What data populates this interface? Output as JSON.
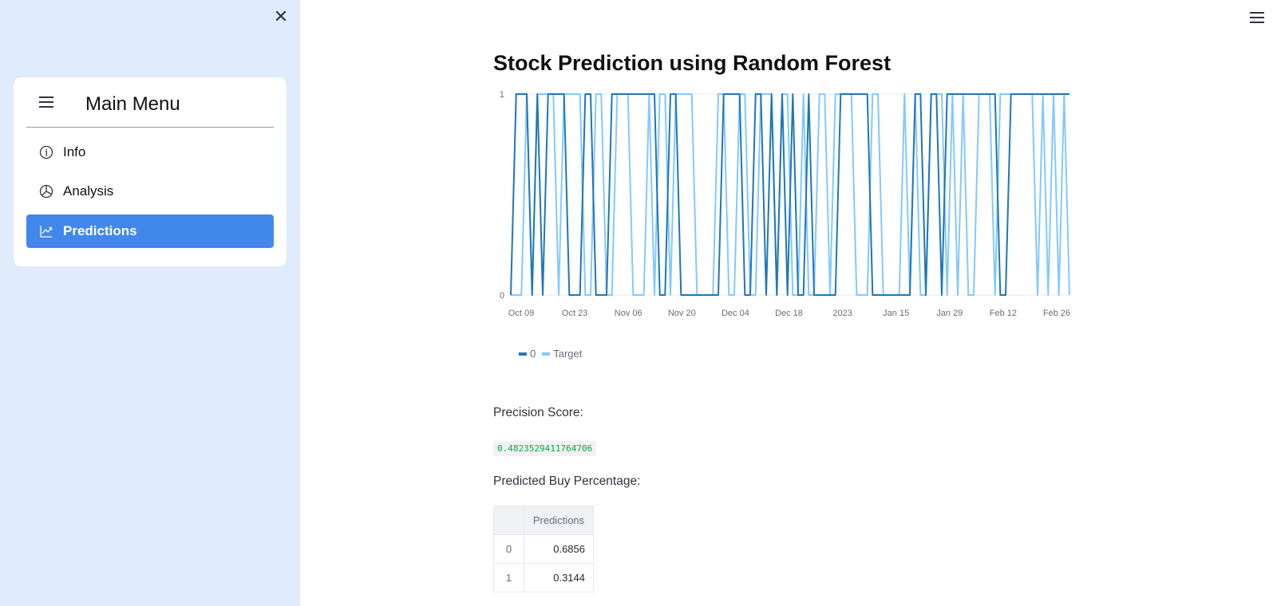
{
  "sidebar": {
    "close_icon": "close-icon",
    "menu": {
      "title": "Main Menu",
      "items": [
        {
          "label": "Info",
          "icon": "info-icon",
          "active": false
        },
        {
          "label": "Analysis",
          "icon": "pie-chart-icon",
          "active": false
        },
        {
          "label": "Predictions",
          "icon": "graph-up-icon",
          "active": true
        }
      ]
    },
    "active_color": "#4287ec",
    "background_color": "#e0ebfc"
  },
  "header": {
    "menu_icon": "hamburger-icon"
  },
  "main": {
    "title": "Stock Prediction using Random Forest",
    "precision_label": "Precision Score:",
    "precision_value": "0.4823529411764706",
    "buy_label": "Predicted Buy Percentage:",
    "table": {
      "columns": [
        "",
        "Predictions"
      ],
      "rows": [
        {
          "index": "0",
          "value": "0.6856"
        },
        {
          "index": "1",
          "value": "0.3144"
        }
      ]
    }
  },
  "chart_data": {
    "type": "line",
    "title": "",
    "xlabel": "",
    "ylabel": "",
    "y_ticks": [
      "0",
      "1"
    ],
    "ylim": [
      0,
      1
    ],
    "x_ticks": [
      "Oct 09",
      "Oct 23",
      "Nov 06",
      "Nov 20",
      "Dec 04",
      "Dec 18",
      "2023",
      "Jan 15",
      "Jan 29",
      "Feb 12",
      "Feb 26"
    ],
    "legend": "bottom-left",
    "series": [
      {
        "name": "0",
        "color": "#1f77b4",
        "values": [
          0,
          1,
          1,
          1,
          0,
          1,
          0,
          1,
          1,
          1,
          1,
          0,
          0,
          0,
          1,
          1,
          0,
          0,
          0,
          1,
          1,
          1,
          1,
          1,
          1,
          1,
          1,
          1,
          0,
          0,
          1,
          1,
          0,
          0,
          0,
          0,
          0,
          0,
          0,
          0,
          1,
          1,
          1,
          1,
          0,
          0,
          1,
          1,
          0,
          1,
          0,
          1,
          0,
          1,
          0,
          0,
          1,
          0,
          0,
          0,
          0,
          0,
          1,
          1,
          1,
          1,
          1,
          1,
          0,
          0,
          0,
          0,
          0,
          0,
          0,
          0,
          1,
          1,
          0,
          1,
          1,
          0,
          1,
          1,
          1,
          1,
          1,
          1,
          1,
          1,
          1,
          1,
          0,
          0,
          1,
          1,
          1,
          1,
          1,
          1,
          1,
          1,
          1,
          1,
          1,
          1
        ]
      },
      {
        "name": "Target",
        "color": "#83c9ff",
        "values": [
          0,
          0,
          0,
          1,
          0,
          1,
          1,
          1,
          1,
          0,
          1,
          1,
          1,
          1,
          0,
          0,
          1,
          1,
          0,
          0,
          1,
          1,
          1,
          0,
          0,
          0,
          1,
          0,
          1,
          1,
          0,
          1,
          1,
          1,
          1,
          0,
          0,
          0,
          0,
          1,
          1,
          0,
          0,
          1,
          1,
          0,
          0,
          1,
          1,
          1,
          0,
          1,
          1,
          0,
          0,
          1,
          0,
          0,
          1,
          1,
          0,
          1,
          1,
          1,
          1,
          0,
          0,
          0,
          1,
          1,
          0,
          0,
          0,
          0,
          1,
          0,
          1,
          0,
          0,
          1,
          1,
          1,
          0,
          1,
          0,
          1,
          0,
          0,
          1,
          1,
          1,
          0,
          1,
          1,
          1,
          1,
          1,
          1,
          1,
          0,
          1,
          0,
          1,
          0,
          1,
          0
        ]
      }
    ]
  }
}
